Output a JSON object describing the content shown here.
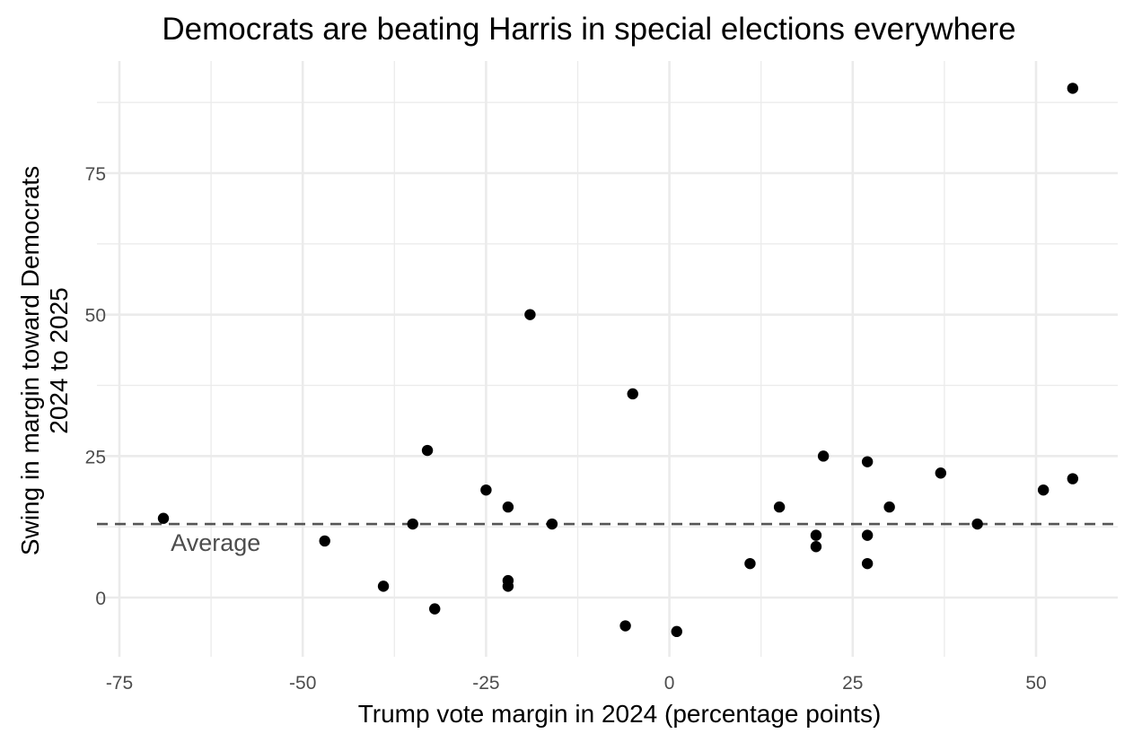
{
  "chart_data": {
    "type": "scatter",
    "title": "Democrats are beating Harris in special elections everywhere",
    "xlabel": "Trump vote margin in 2024 (percentage points)",
    "ylabel_lines": [
      "Swing in margin toward Democrats",
      "2024 to 2025"
    ],
    "xlim": [
      -75,
      60
    ],
    "ylim": [
      -10,
      92
    ],
    "x_ticks": [
      -75,
      -50,
      -25,
      0,
      25,
      50
    ],
    "x_tick_labels": [
      "-75",
      "-50",
      "-25",
      "0",
      "25",
      "50"
    ],
    "y_ticks": [
      0,
      25,
      50,
      75
    ],
    "y_tick_labels": [
      "0",
      "25",
      "50",
      "75"
    ],
    "grid": true,
    "reference_line": {
      "y": 13,
      "style": "dashed",
      "color": "#555555",
      "label": "Average"
    },
    "point_color": "#000000",
    "points": [
      {
        "x": -69,
        "y": 14
      },
      {
        "x": -47,
        "y": 10
      },
      {
        "x": -39,
        "y": 2
      },
      {
        "x": -35,
        "y": 13
      },
      {
        "x": -33,
        "y": 26
      },
      {
        "x": -32,
        "y": -2
      },
      {
        "x": -25,
        "y": 19
      },
      {
        "x": -22,
        "y": 16
      },
      {
        "x": -22,
        "y": 3
      },
      {
        "x": -22,
        "y": 2
      },
      {
        "x": -19,
        "y": 50
      },
      {
        "x": -16,
        "y": 13
      },
      {
        "x": -6,
        "y": -5
      },
      {
        "x": -5,
        "y": 36
      },
      {
        "x": 1,
        "y": -6
      },
      {
        "x": 11,
        "y": 6
      },
      {
        "x": 15,
        "y": 16
      },
      {
        "x": 20,
        "y": 11
      },
      {
        "x": 20,
        "y": 9
      },
      {
        "x": 21,
        "y": 25
      },
      {
        "x": 27,
        "y": 24
      },
      {
        "x": 27,
        "y": 11
      },
      {
        "x": 27,
        "y": 6
      },
      {
        "x": 30,
        "y": 16
      },
      {
        "x": 37,
        "y": 22
      },
      {
        "x": 42,
        "y": 13
      },
      {
        "x": 51,
        "y": 19
      },
      {
        "x": 55,
        "y": 21
      },
      {
        "x": 55,
        "y": 90
      }
    ]
  }
}
